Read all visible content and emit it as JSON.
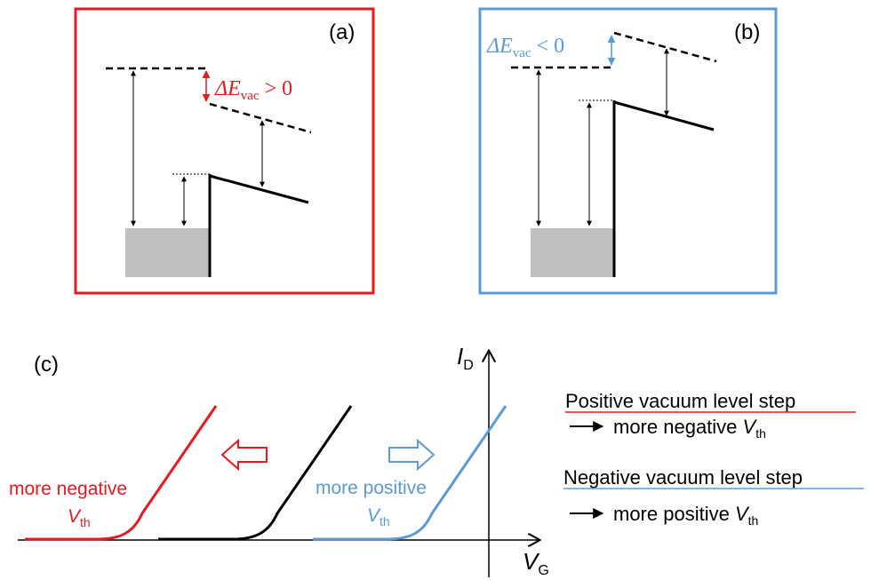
{
  "panels": {
    "a": {
      "label": "(a)",
      "annotation_prefix": "ΔE",
      "annotation_sub": "vac",
      "annotation_suffix": " > 0",
      "color": "#e8191f"
    },
    "b": {
      "label": "(b)",
      "annotation_prefix": "ΔE",
      "annotation_sub": "vac",
      "annotation_suffix": " < 0",
      "color": "#5b9bd5"
    }
  },
  "panel_c": {
    "label": "(c)",
    "y_axis": {
      "symbol": "I",
      "sub": "D"
    },
    "x_axis": {
      "symbol": "V",
      "sub": "G"
    },
    "left_curve_label": {
      "line1": "more negative",
      "symbol": "V",
      "sub": "th"
    },
    "right_curve_label": {
      "line1": "more positive",
      "symbol": "V",
      "sub": "th"
    }
  },
  "legend": {
    "positive_title": "Positive vacuum level step",
    "positive_result": "more negative ",
    "positive_result_symbol": "V",
    "positive_result_sub": "th",
    "negative_title": "Negative vacuum level step",
    "negative_result": "more positive ",
    "negative_result_symbol": "V",
    "negative_result_sub": "th"
  },
  "colors": {
    "red": "#e8191f",
    "blue": "#5b9bd5",
    "black": "#000000",
    "metal_fill": "#bfbfbf"
  }
}
